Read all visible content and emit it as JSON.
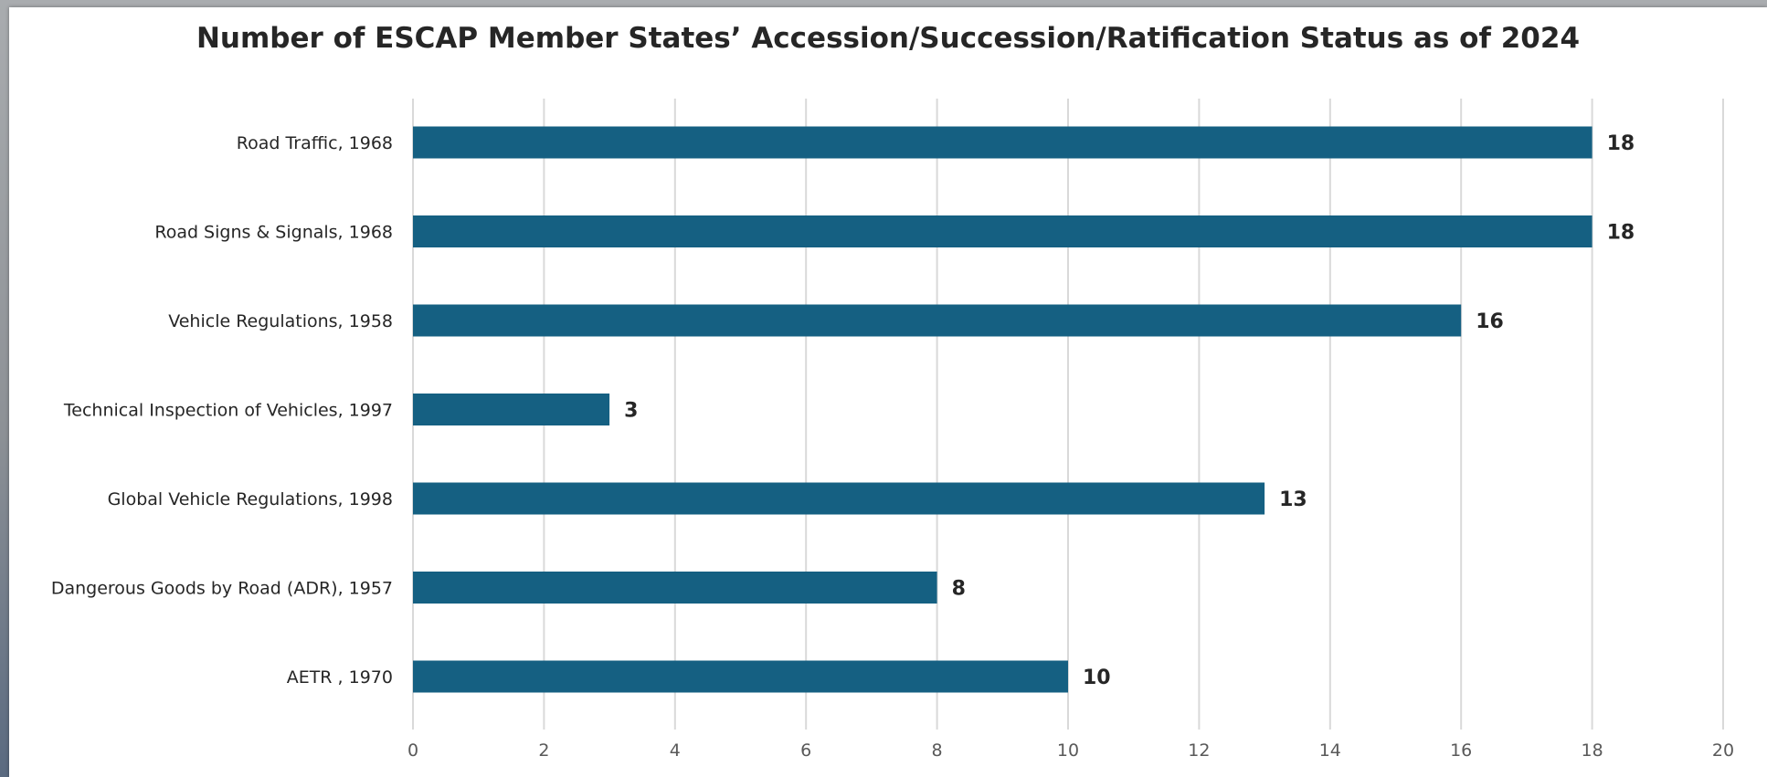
{
  "chart_data": {
    "type": "bar",
    "orientation": "horizontal",
    "title": "Number of ESCAP Member States’ Accession/Succession/Ratification Status as of 2024",
    "categories": [
      "Road Traffic, 1968",
      "Road Signs & Signals, 1968",
      "Vehicle Regulations, 1958",
      "Technical Inspection of Vehicles, 1997",
      "Global Vehicle Regulations, 1998",
      "Dangerous Goods by Road (ADR), 1957",
      "AETR , 1970"
    ],
    "values": [
      18,
      18,
      16,
      3,
      13,
      8,
      10
    ],
    "xlim": [
      0,
      20
    ],
    "xticks": [
      0,
      2,
      4,
      6,
      8,
      10,
      12,
      14,
      16,
      18,
      20
    ],
    "grid": "vertical",
    "data_labels": true,
    "legend": "none",
    "xlabel": "",
    "ylabel": "",
    "colors": {
      "bar": "#156082",
      "text": "#262626",
      "tick": "#595959",
      "grid": "#d9d9d9"
    }
  }
}
